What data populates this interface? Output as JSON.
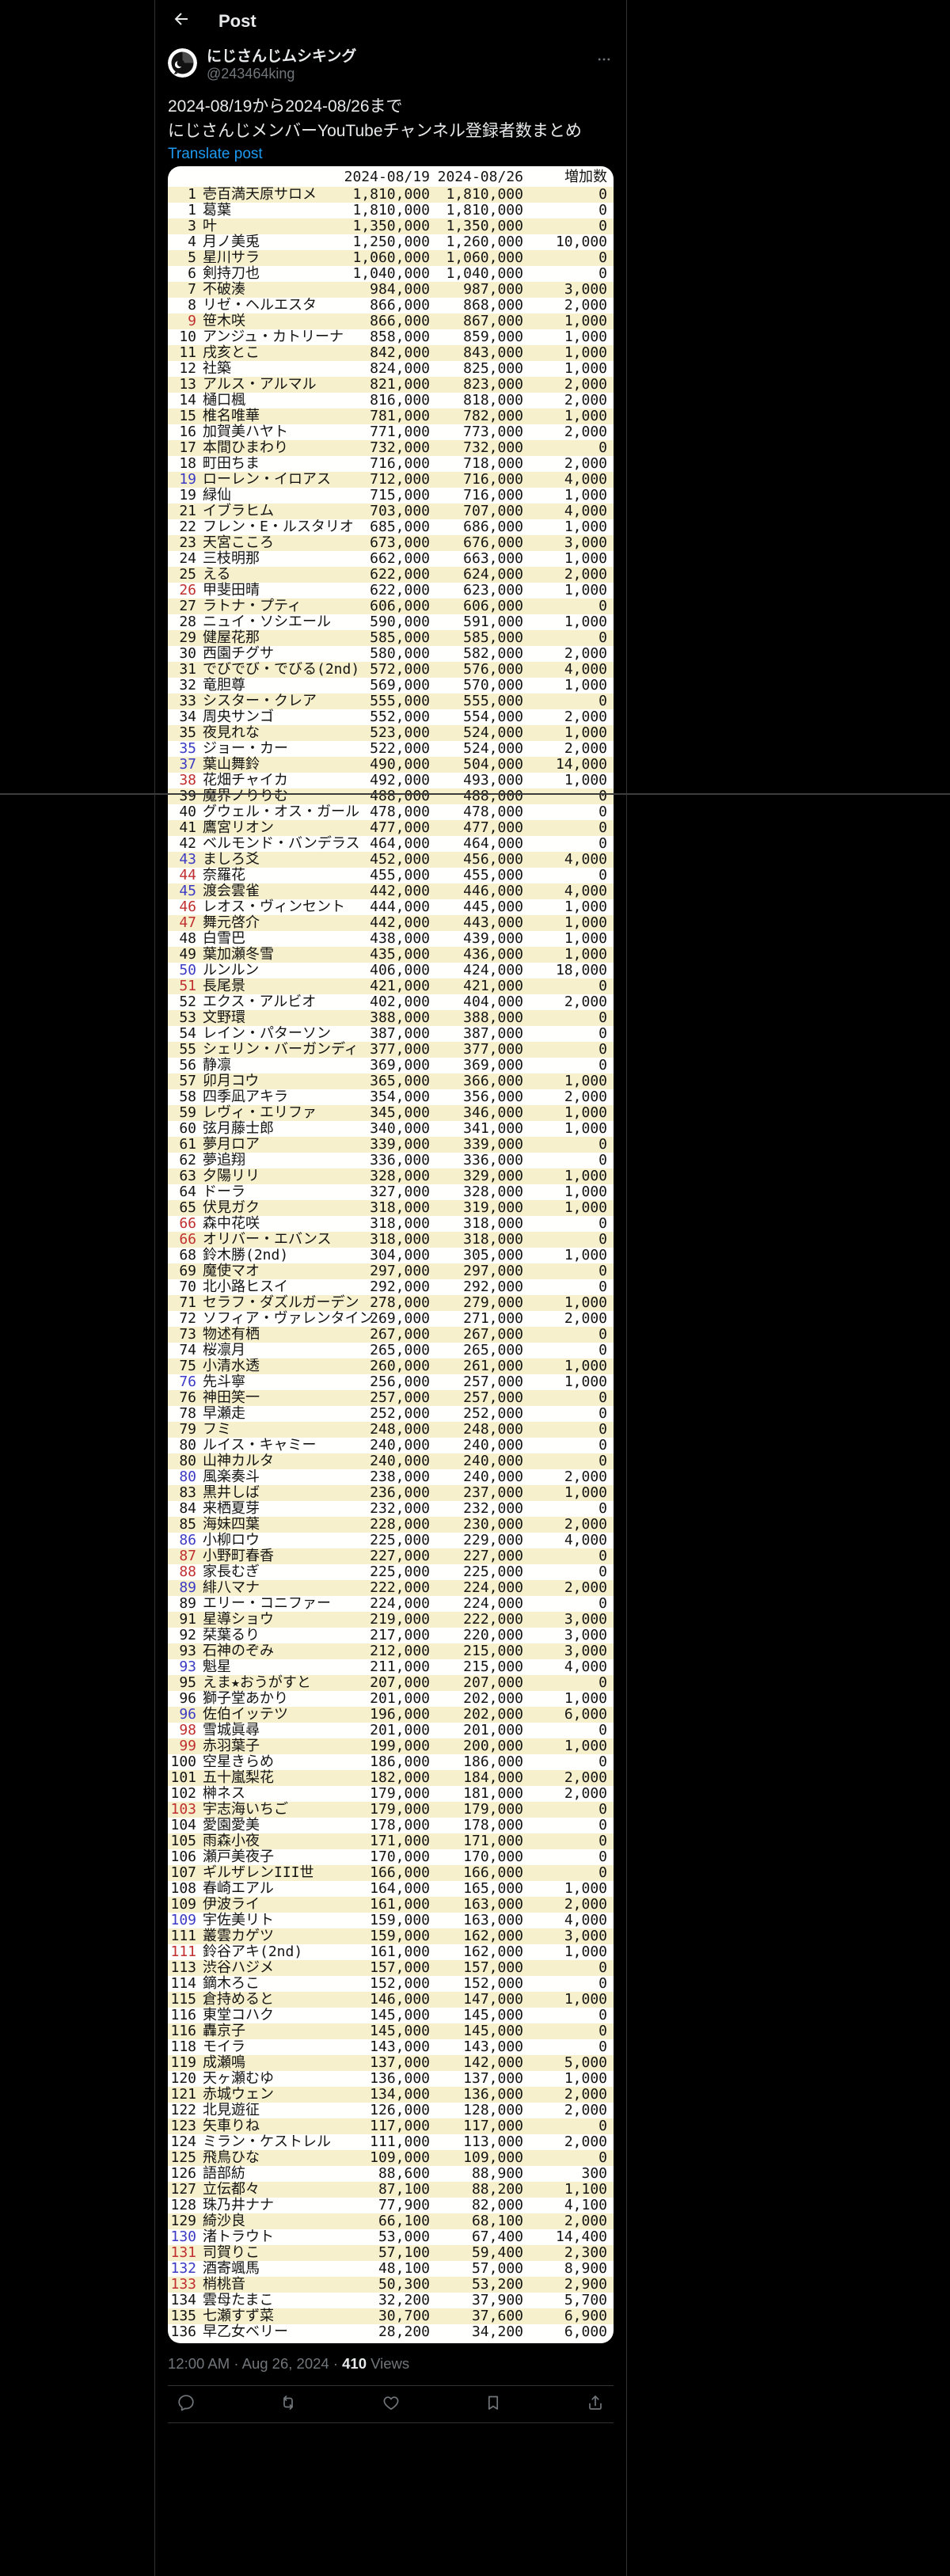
{
  "topbar": {
    "title": "Post"
  },
  "user": {
    "display_name": "にじさんじムシキング",
    "handle": "@243464king"
  },
  "tweet": {
    "text_line1": "2024-08/19から2024-08/26まで",
    "text_line2": "にじさんじメンバーYouTubeチャンネル登録者数まとめ",
    "translate_label": "Translate post"
  },
  "table": {
    "col_date1": "2024-08/19",
    "col_date2": "2024-08/26",
    "col_diff": "増加数",
    "rank_color_legend": {
      "b": "rank-up-blue",
      "r": "rank-down-red",
      "": "unchanged-black"
    },
    "rows": [
      [
        "1",
        "壱百満天原サロメ",
        "1,810,000",
        "1,810,000",
        "0",
        ""
      ],
      [
        "1",
        "葛葉",
        "1,810,000",
        "1,810,000",
        "0",
        ""
      ],
      [
        "3",
        "叶",
        "1,350,000",
        "1,350,000",
        "0",
        ""
      ],
      [
        "4",
        "月ノ美兎",
        "1,250,000",
        "1,260,000",
        "10,000",
        ""
      ],
      [
        "5",
        "星川サラ",
        "1,060,000",
        "1,060,000",
        "0",
        ""
      ],
      [
        "6",
        "剣持刀也",
        "1,040,000",
        "1,040,000",
        "0",
        ""
      ],
      [
        "7",
        "不破湊",
        "984,000",
        "987,000",
        "3,000",
        ""
      ],
      [
        "8",
        "リゼ・ヘルエスタ",
        "866,000",
        "868,000",
        "2,000",
        ""
      ],
      [
        "9",
        "笹木咲",
        "866,000",
        "867,000",
        "1,000",
        "r"
      ],
      [
        "10",
        "アンジュ・カトリーナ",
        "858,000",
        "859,000",
        "1,000",
        ""
      ],
      [
        "11",
        "戌亥とこ",
        "842,000",
        "843,000",
        "1,000",
        ""
      ],
      [
        "12",
        "社築",
        "824,000",
        "825,000",
        "1,000",
        ""
      ],
      [
        "13",
        "アルス・アルマル",
        "821,000",
        "823,000",
        "2,000",
        ""
      ],
      [
        "14",
        "樋口楓",
        "816,000",
        "818,000",
        "2,000",
        ""
      ],
      [
        "15",
        "椎名唯華",
        "781,000",
        "782,000",
        "1,000",
        ""
      ],
      [
        "16",
        "加賀美ハヤト",
        "771,000",
        "773,000",
        "2,000",
        ""
      ],
      [
        "17",
        "本間ひまわり",
        "732,000",
        "732,000",
        "0",
        ""
      ],
      [
        "18",
        "町田ちま",
        "716,000",
        "718,000",
        "2,000",
        ""
      ],
      [
        "19",
        "ローレン・イロアス",
        "712,000",
        "716,000",
        "4,000",
        "b"
      ],
      [
        "19",
        "緑仙",
        "715,000",
        "716,000",
        "1,000",
        ""
      ],
      [
        "21",
        "イブラヒム",
        "703,000",
        "707,000",
        "4,000",
        ""
      ],
      [
        "22",
        "フレン・E・ルスタリオ",
        "685,000",
        "686,000",
        "1,000",
        ""
      ],
      [
        "23",
        "天宮こころ",
        "673,000",
        "676,000",
        "3,000",
        ""
      ],
      [
        "24",
        "三枝明那",
        "662,000",
        "663,000",
        "1,000",
        ""
      ],
      [
        "25",
        "える",
        "622,000",
        "624,000",
        "2,000",
        ""
      ],
      [
        "26",
        "甲斐田晴",
        "622,000",
        "623,000",
        "1,000",
        "r"
      ],
      [
        "27",
        "ラトナ・プティ",
        "606,000",
        "606,000",
        "0",
        ""
      ],
      [
        "28",
        "ニュイ・ソシエール",
        "590,000",
        "591,000",
        "1,000",
        ""
      ],
      [
        "29",
        "健屋花那",
        "585,000",
        "585,000",
        "0",
        ""
      ],
      [
        "30",
        "西園チグサ",
        "580,000",
        "582,000",
        "2,000",
        ""
      ],
      [
        "31",
        "でびでび・でびる(2nd)",
        "572,000",
        "576,000",
        "4,000",
        ""
      ],
      [
        "32",
        "竜胆尊",
        "569,000",
        "570,000",
        "1,000",
        ""
      ],
      [
        "33",
        "シスター・クレア",
        "555,000",
        "555,000",
        "0",
        ""
      ],
      [
        "34",
        "周央サンゴ",
        "552,000",
        "554,000",
        "2,000",
        ""
      ],
      [
        "35",
        "夜見れな",
        "523,000",
        "524,000",
        "1,000",
        ""
      ],
      [
        "35",
        "ジョー・カー",
        "522,000",
        "524,000",
        "2,000",
        "b"
      ],
      [
        "37",
        "葉山舞鈴",
        "490,000",
        "504,000",
        "14,000",
        "b"
      ],
      [
        "38",
        "花畑チャイカ",
        "492,000",
        "493,000",
        "1,000",
        "r"
      ],
      [
        "39",
        "魔界ノりりむ",
        "488,000",
        "488,000",
        "0",
        ""
      ],
      [
        "40",
        "グウェル・オス・ガール",
        "478,000",
        "478,000",
        "0",
        ""
      ],
      [
        "41",
        "鷹宮リオン",
        "477,000",
        "477,000",
        "0",
        ""
      ],
      [
        "42",
        "ベルモンド・バンデラス",
        "464,000",
        "464,000",
        "0",
        ""
      ],
      [
        "43",
        "ましろ爻",
        "452,000",
        "456,000",
        "4,000",
        "b"
      ],
      [
        "44",
        "奈羅花",
        "455,000",
        "455,000",
        "0",
        "r"
      ],
      [
        "45",
        "渡会雲雀",
        "442,000",
        "446,000",
        "4,000",
        "b"
      ],
      [
        "46",
        "レオス・ヴィンセント",
        "444,000",
        "445,000",
        "1,000",
        "r"
      ],
      [
        "47",
        "舞元啓介",
        "442,000",
        "443,000",
        "1,000",
        "r"
      ],
      [
        "48",
        "白雪巴",
        "438,000",
        "439,000",
        "1,000",
        ""
      ],
      [
        "49",
        "葉加瀬冬雪",
        "435,000",
        "436,000",
        "1,000",
        ""
      ],
      [
        "50",
        "ルンルン",
        "406,000",
        "424,000",
        "18,000",
        "b"
      ],
      [
        "51",
        "長尾景",
        "421,000",
        "421,000",
        "0",
        "r"
      ],
      [
        "52",
        "エクス・アルビオ",
        "402,000",
        "404,000",
        "2,000",
        ""
      ],
      [
        "53",
        "文野環",
        "388,000",
        "388,000",
        "0",
        ""
      ],
      [
        "54",
        "レイン・パターソン",
        "387,000",
        "387,000",
        "0",
        ""
      ],
      [
        "55",
        "シェリン・バーガンディ",
        "377,000",
        "377,000",
        "0",
        ""
      ],
      [
        "56",
        "静凛",
        "369,000",
        "369,000",
        "0",
        ""
      ],
      [
        "57",
        "卯月コウ",
        "365,000",
        "366,000",
        "1,000",
        ""
      ],
      [
        "58",
        "四季凪アキラ",
        "354,000",
        "356,000",
        "2,000",
        ""
      ],
      [
        "59",
        "レヴィ・エリファ",
        "345,000",
        "346,000",
        "1,000",
        ""
      ],
      [
        "60",
        "弦月藤士郎",
        "340,000",
        "341,000",
        "1,000",
        ""
      ],
      [
        "61",
        "夢月ロア",
        "339,000",
        "339,000",
        "0",
        ""
      ],
      [
        "62",
        "夢追翔",
        "336,000",
        "336,000",
        "0",
        ""
      ],
      [
        "63",
        "夕陽リリ",
        "328,000",
        "329,000",
        "1,000",
        ""
      ],
      [
        "64",
        "ドーラ",
        "327,000",
        "328,000",
        "1,000",
        ""
      ],
      [
        "65",
        "伏見ガク",
        "318,000",
        "319,000",
        "1,000",
        ""
      ],
      [
        "66",
        "森中花咲",
        "318,000",
        "318,000",
        "0",
        "r"
      ],
      [
        "66",
        "オリバー・エバンス",
        "318,000",
        "318,000",
        "0",
        "r"
      ],
      [
        "68",
        "鈴木勝(2nd)",
        "304,000",
        "305,000",
        "1,000",
        ""
      ],
      [
        "69",
        "魔使マオ",
        "297,000",
        "297,000",
        "0",
        ""
      ],
      [
        "70",
        "北小路ヒスイ",
        "292,000",
        "292,000",
        "0",
        ""
      ],
      [
        "71",
        "セラフ・ダズルガーデン",
        "278,000",
        "279,000",
        "1,000",
        ""
      ],
      [
        "72",
        "ソフィア・ヴァレンタイン",
        "269,000",
        "271,000",
        "2,000",
        ""
      ],
      [
        "73",
        "物述有栖",
        "267,000",
        "267,000",
        "0",
        ""
      ],
      [
        "74",
        "桜凛月",
        "265,000",
        "265,000",
        "0",
        ""
      ],
      [
        "75",
        "小清水透",
        "260,000",
        "261,000",
        "1,000",
        ""
      ],
      [
        "76",
        "先斗寧",
        "256,000",
        "257,000",
        "1,000",
        "b"
      ],
      [
        "76",
        "神田笑一",
        "257,000",
        "257,000",
        "0",
        ""
      ],
      [
        "78",
        "早瀬走",
        "252,000",
        "252,000",
        "0",
        ""
      ],
      [
        "79",
        "フミ",
        "248,000",
        "248,000",
        "0",
        ""
      ],
      [
        "80",
        "ルイス・キャミー",
        "240,000",
        "240,000",
        "0",
        ""
      ],
      [
        "80",
        "山神カルタ",
        "240,000",
        "240,000",
        "0",
        ""
      ],
      [
        "80",
        "風楽奏斗",
        "238,000",
        "240,000",
        "2,000",
        "b"
      ],
      [
        "83",
        "黒井しば",
        "236,000",
        "237,000",
        "1,000",
        ""
      ],
      [
        "84",
        "来栖夏芽",
        "232,000",
        "232,000",
        "0",
        ""
      ],
      [
        "85",
        "海妹四葉",
        "228,000",
        "230,000",
        "2,000",
        ""
      ],
      [
        "86",
        "小柳ロウ",
        "225,000",
        "229,000",
        "4,000",
        "b"
      ],
      [
        "87",
        "小野町春香",
        "227,000",
        "227,000",
        "0",
        "r"
      ],
      [
        "88",
        "家長むぎ",
        "225,000",
        "225,000",
        "0",
        "r"
      ],
      [
        "89",
        "緋八マナ",
        "222,000",
        "224,000",
        "2,000",
        "b"
      ],
      [
        "89",
        "エリー・コニファー",
        "224,000",
        "224,000",
        "0",
        ""
      ],
      [
        "91",
        "星導ショウ",
        "219,000",
        "222,000",
        "3,000",
        ""
      ],
      [
        "92",
        "栞葉るり",
        "217,000",
        "220,000",
        "3,000",
        ""
      ],
      [
        "93",
        "石神のぞみ",
        "212,000",
        "215,000",
        "3,000",
        ""
      ],
      [
        "93",
        "魁星",
        "211,000",
        "215,000",
        "4,000",
        "b"
      ],
      [
        "95",
        "えま★おうがすと",
        "207,000",
        "207,000",
        "0",
        ""
      ],
      [
        "96",
        "獅子堂あかり",
        "201,000",
        "202,000",
        "1,000",
        ""
      ],
      [
        "96",
        "佐伯イッテツ",
        "196,000",
        "202,000",
        "6,000",
        "b"
      ],
      [
        "98",
        "雪城眞尋",
        "201,000",
        "201,000",
        "0",
        "r"
      ],
      [
        "99",
        "赤羽葉子",
        "199,000",
        "200,000",
        "1,000",
        "r"
      ],
      [
        "100",
        "空星きらめ",
        "186,000",
        "186,000",
        "0",
        ""
      ],
      [
        "101",
        "五十嵐梨花",
        "182,000",
        "184,000",
        "2,000",
        ""
      ],
      [
        "102",
        "榊ネス",
        "179,000",
        "181,000",
        "2,000",
        ""
      ],
      [
        "103",
        "宇志海いちご",
        "179,000",
        "179,000",
        "0",
        "r"
      ],
      [
        "104",
        "愛園愛美",
        "178,000",
        "178,000",
        "0",
        ""
      ],
      [
        "105",
        "雨森小夜",
        "171,000",
        "171,000",
        "0",
        ""
      ],
      [
        "106",
        "瀬戸美夜子",
        "170,000",
        "170,000",
        "0",
        ""
      ],
      [
        "107",
        "ギルザレンIII世",
        "166,000",
        "166,000",
        "0",
        ""
      ],
      [
        "108",
        "春崎エアル",
        "164,000",
        "165,000",
        "1,000",
        ""
      ],
      [
        "109",
        "伊波ライ",
        "161,000",
        "163,000",
        "2,000",
        ""
      ],
      [
        "109",
        "宇佐美リト",
        "159,000",
        "163,000",
        "4,000",
        "b"
      ],
      [
        "111",
        "叢雲カゲツ",
        "159,000",
        "162,000",
        "3,000",
        ""
      ],
      [
        "111",
        "鈴谷アキ(2nd)",
        "161,000",
        "162,000",
        "1,000",
        "r"
      ],
      [
        "113",
        "渋谷ハジメ",
        "157,000",
        "157,000",
        "0",
        ""
      ],
      [
        "114",
        "鏑木ろこ",
        "152,000",
        "152,000",
        "0",
        ""
      ],
      [
        "115",
        "倉持めると",
        "146,000",
        "147,000",
        "1,000",
        ""
      ],
      [
        "116",
        "東堂コハク",
        "145,000",
        "145,000",
        "0",
        ""
      ],
      [
        "116",
        "轟京子",
        "145,000",
        "145,000",
        "0",
        ""
      ],
      [
        "118",
        "モイラ",
        "143,000",
        "143,000",
        "0",
        ""
      ],
      [
        "119",
        "成瀬鳴",
        "137,000",
        "142,000",
        "5,000",
        ""
      ],
      [
        "120",
        "天ヶ瀬むゆ",
        "136,000",
        "137,000",
        "1,000",
        ""
      ],
      [
        "121",
        "赤城ウェン",
        "134,000",
        "136,000",
        "2,000",
        ""
      ],
      [
        "122",
        "北見遊征",
        "126,000",
        "128,000",
        "2,000",
        ""
      ],
      [
        "123",
        "矢車りね",
        "117,000",
        "117,000",
        "0",
        ""
      ],
      [
        "124",
        "ミラン・ケストレル",
        "111,000",
        "113,000",
        "2,000",
        ""
      ],
      [
        "125",
        "飛鳥ひな",
        "109,000",
        "109,000",
        "0",
        ""
      ],
      [
        "126",
        "語部紡",
        "88,600",
        "88,900",
        "300",
        ""
      ],
      [
        "127",
        "立伝都々",
        "87,100",
        "88,200",
        "1,100",
        ""
      ],
      [
        "128",
        "珠乃井ナナ",
        "77,900",
        "82,000",
        "4,100",
        ""
      ],
      [
        "129",
        "綺沙良",
        "66,100",
        "68,100",
        "2,000",
        ""
      ],
      [
        "130",
        "渚トラウト",
        "53,000",
        "67,400",
        "14,400",
        "b"
      ],
      [
        "131",
        "司賀りこ",
        "57,100",
        "59,400",
        "2,300",
        "r"
      ],
      [
        "132",
        "酒寄颯馬",
        "48,100",
        "57,000",
        "8,900",
        "b"
      ],
      [
        "133",
        "梢桃音",
        "50,300",
        "53,200",
        "2,900",
        "r"
      ],
      [
        "134",
        "雲母たまこ",
        "32,200",
        "37,900",
        "5,700",
        ""
      ],
      [
        "135",
        "七瀬すず菜",
        "30,700",
        "37,600",
        "6,900",
        ""
      ],
      [
        "136",
        "早乙女ベリー",
        "28,200",
        "34,200",
        "6,000",
        ""
      ]
    ]
  },
  "footer": {
    "time": "12:00 AM",
    "date": "Aug 26, 2024",
    "dot": "·",
    "views_count": "410",
    "views_label": "Views",
    "action_icons": [
      "reply",
      "repost",
      "like",
      "bookmark",
      "share"
    ]
  },
  "colors": {
    "background": "#000000",
    "divider": "#2f3336",
    "text_primary": "#e7e9ea",
    "text_secondary": "#71767b",
    "link_blue": "#1d9bf0",
    "table_stripe": "#f6f0cc",
    "table_background": "#fffffe",
    "rank_up_blue": "#3b3bc4",
    "rank_down_red": "#c03030",
    "stitch_line": "#3c3c3c"
  }
}
